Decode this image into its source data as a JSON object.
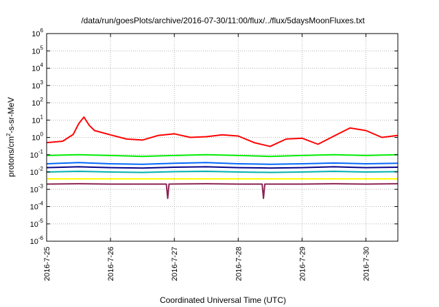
{
  "chart_data": {
    "type": "line",
    "title": "/data/run/goesPlots/archive/2016-07-30/11:00/flux/../flux/5daysMoonFluxes.txt",
    "xlabel": "Coordinated Universal Time (UTC)",
    "ylabel": "protons/cm²-s-sr-MeV",
    "ylabel_parts": {
      "before": "protons/cm",
      "sup": "2",
      "after": "-s-sr-MeV"
    },
    "yscale": "log",
    "ylim": [
      1e-06,
      1000000.0
    ],
    "xlim": [
      "2016-07-25",
      "2016-07-30 12:00"
    ],
    "grid": true,
    "legend": "none",
    "x_ticks": [
      "2016-7-25",
      "2016-7-26",
      "2016-7-27",
      "2016-7-28",
      "2016-7-29",
      "2016-7-30"
    ],
    "y_ticks": [
      {
        "base": "10",
        "exp": "6"
      },
      {
        "base": "10",
        "exp": "5"
      },
      {
        "base": "10",
        "exp": "4"
      },
      {
        "base": "10",
        "exp": "3"
      },
      {
        "base": "10",
        "exp": "2"
      },
      {
        "base": "10",
        "exp": "1"
      },
      {
        "base": "10",
        "exp": "0"
      },
      {
        "base": "10",
        "exp": "-1"
      },
      {
        "base": "10",
        "exp": "-2"
      },
      {
        "base": "10",
        "exp": "-3"
      },
      {
        "base": "10",
        "exp": "-4"
      },
      {
        "base": "10",
        "exp": "-5"
      },
      {
        "base": "10",
        "exp": "-6"
      }
    ],
    "series": [
      {
        "color": "#ff0000",
        "x": [
          "2016-07-25 00:00",
          "2016-07-25 06:00",
          "2016-07-25 10:00",
          "2016-07-25 12:00",
          "2016-07-25 14:00",
          "2016-07-25 16:00",
          "2016-07-25 18:00",
          "2016-07-26 00:00",
          "2016-07-26 06:00",
          "2016-07-26 12:00",
          "2016-07-26 18:00",
          "2016-07-27 00:00",
          "2016-07-27 06:00",
          "2016-07-27 12:00",
          "2016-07-27 18:00",
          "2016-07-28 00:00",
          "2016-07-28 06:00",
          "2016-07-28 12:00",
          "2016-07-28 18:00",
          "2016-07-29 00:00",
          "2016-07-29 06:00",
          "2016-07-29 12:00",
          "2016-07-29 18:00",
          "2016-07-30 00:00",
          "2016-07-30 06:00",
          "2016-07-30 12:00"
        ],
        "y": [
          0.5,
          0.6,
          1.5,
          6,
          15,
          5,
          2.5,
          1.4,
          0.8,
          0.7,
          1.3,
          1.6,
          1.0,
          1.1,
          1.4,
          1.2,
          0.5,
          0.3,
          0.8,
          0.9,
          0.4,
          1.2,
          3.5,
          2.5,
          1.0,
          1.3
        ]
      },
      {
        "color": "#00ee00",
        "x": [
          "2016-07-25 00:00",
          "2016-07-25 12:00",
          "2016-07-26 00:00",
          "2016-07-26 12:00",
          "2016-07-27 00:00",
          "2016-07-27 12:00",
          "2016-07-28 00:00",
          "2016-07-28 12:00",
          "2016-07-29 00:00",
          "2016-07-29 12:00",
          "2016-07-30 00:00",
          "2016-07-30 12:00"
        ],
        "y": [
          0.09,
          0.1,
          0.09,
          0.08,
          0.09,
          0.1,
          0.09,
          0.08,
          0.09,
          0.1,
          0.09,
          0.1
        ]
      },
      {
        "color": "#0066ff",
        "x": [
          "2016-07-25 00:00",
          "2016-07-25 12:00",
          "2016-07-26 00:00",
          "2016-07-26 12:00",
          "2016-07-27 00:00",
          "2016-07-27 12:00",
          "2016-07-28 00:00",
          "2016-07-28 12:00",
          "2016-07-29 00:00",
          "2016-07-29 12:00",
          "2016-07-30 00:00",
          "2016-07-30 12:00"
        ],
        "y": [
          0.03,
          0.035,
          0.03,
          0.028,
          0.032,
          0.035,
          0.03,
          0.028,
          0.03,
          0.033,
          0.03,
          0.032
        ]
      },
      {
        "color": "#00008b",
        "x": [
          "2016-07-25 00:00",
          "2016-07-25 12:00",
          "2016-07-26 00:00",
          "2016-07-26 12:00",
          "2016-07-27 00:00",
          "2016-07-27 12:00",
          "2016-07-28 00:00",
          "2016-07-28 12:00",
          "2016-07-29 00:00",
          "2016-07-29 12:00",
          "2016-07-30 00:00",
          "2016-07-30 12:00"
        ],
        "y": [
          0.018,
          0.02,
          0.018,
          0.017,
          0.019,
          0.02,
          0.018,
          0.017,
          0.018,
          0.02,
          0.018,
          0.019
        ]
      },
      {
        "color": "#00b0b0",
        "x": [
          "2016-07-25 00:00",
          "2016-07-25 12:00",
          "2016-07-26 00:00",
          "2016-07-26 12:00",
          "2016-07-27 00:00",
          "2016-07-27 12:00",
          "2016-07-28 00:00",
          "2016-07-28 12:00",
          "2016-07-29 00:00",
          "2016-07-29 12:00",
          "2016-07-30 00:00",
          "2016-07-30 12:00"
        ],
        "y": [
          0.01,
          0.011,
          0.01,
          0.0095,
          0.0105,
          0.011,
          0.01,
          0.0095,
          0.01,
          0.011,
          0.01,
          0.0105
        ]
      },
      {
        "color": "#ffff00",
        "x": [
          "2016-07-25 00:00",
          "2016-07-25 12:00",
          "2016-07-26 00:00",
          "2016-07-26 12:00",
          "2016-07-27 00:00",
          "2016-07-27 12:00",
          "2016-07-28 00:00",
          "2016-07-28 12:00",
          "2016-07-29 00:00",
          "2016-07-29 12:00",
          "2016-07-30 00:00",
          "2016-07-30 12:00"
        ],
        "y": [
          0.004,
          0.004,
          0.004,
          0.004,
          0.004,
          0.004,
          0.004,
          0.004,
          0.004,
          0.004,
          0.004,
          0.004
        ]
      },
      {
        "color": "#8b2252",
        "x": [
          "2016-07-25 00:00",
          "2016-07-25 12:00",
          "2016-07-26 00:00",
          "2016-07-26 12:00",
          "2016-07-26 21:00",
          "2016-07-26 21:30",
          "2016-07-26 22:00",
          "2016-07-27 12:00",
          "2016-07-28 00:00",
          "2016-07-28 09:00",
          "2016-07-28 09:30",
          "2016-07-28 10:00",
          "2016-07-29 00:00",
          "2016-07-29 12:00",
          "2016-07-30 00:00",
          "2016-07-30 12:00"
        ],
        "y": [
          0.002,
          0.0021,
          0.002,
          0.002,
          0.002,
          0.0003,
          0.002,
          0.0021,
          0.002,
          0.002,
          0.0003,
          0.002,
          0.002,
          0.0021,
          0.002,
          0.0021
        ]
      }
    ]
  }
}
